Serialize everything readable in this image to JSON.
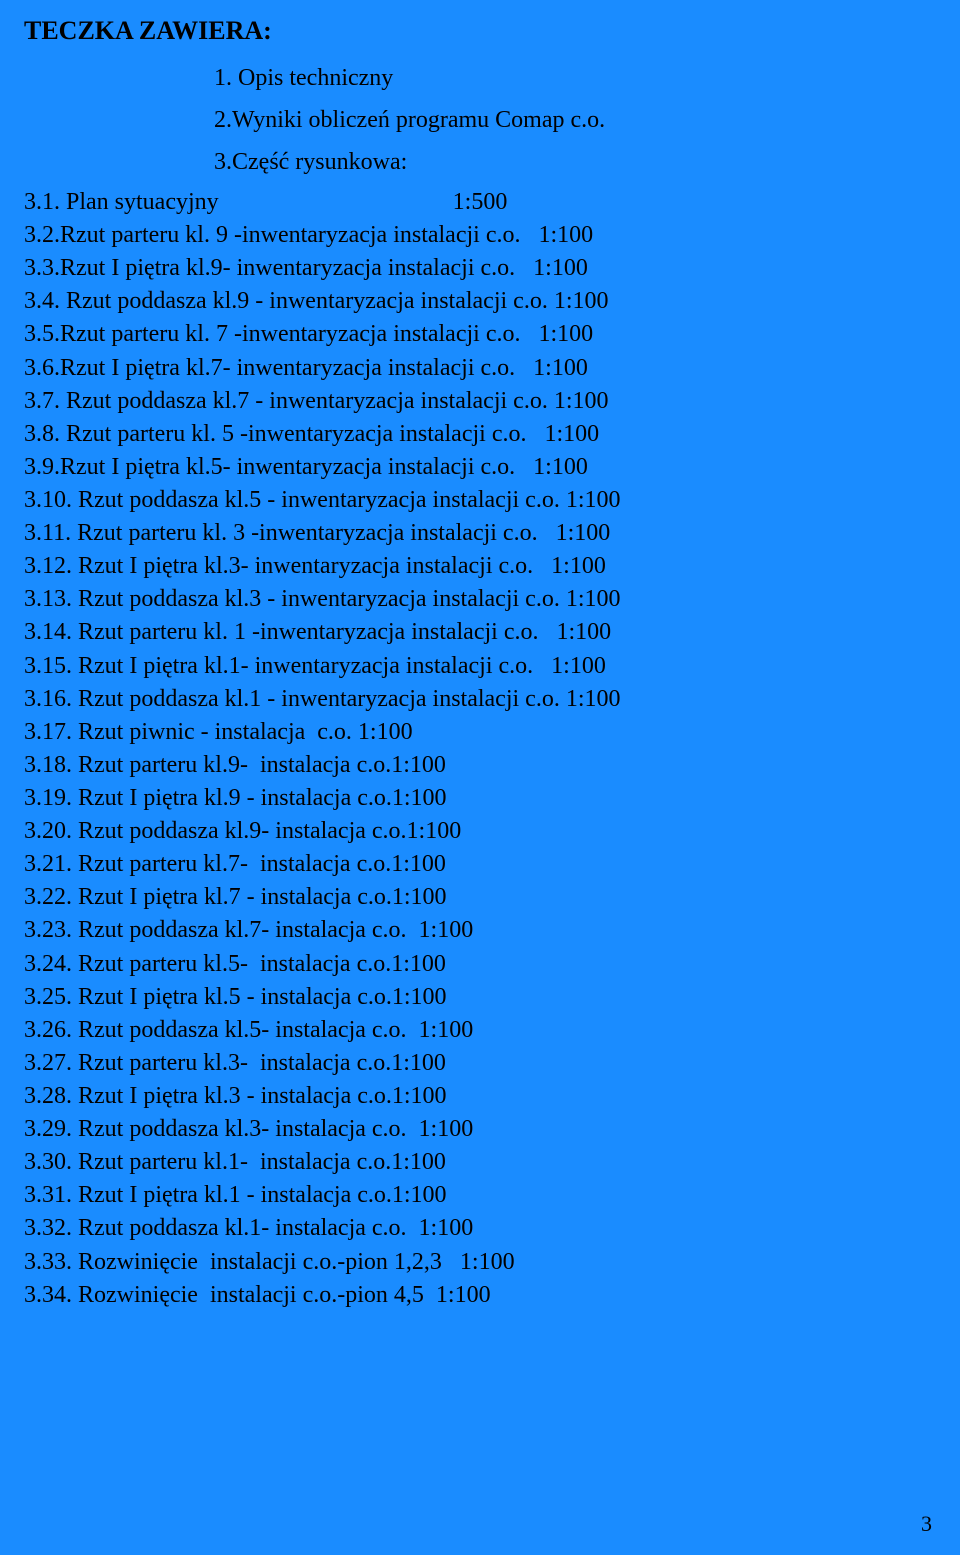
{
  "heading": "TECZKA ZAWIERA:",
  "intro": [
    "1. Opis techniczny",
    "",
    "2.Wyniki obliczeń programu Comap c.o.",
    "",
    "3.Część rysunkowa:"
  ],
  "items": [
    "3.1. Plan sytuacyjny                                       1:500",
    "3.2.Rzut parteru kl. 9 -inwentaryzacja instalacji c.o.   1:100",
    "3.3.Rzut I piętra kl.9- inwentaryzacja instalacji c.o.   1:100",
    "3.4. Rzut poddasza kl.9 - inwentaryzacja instalacji c.o. 1:100",
    "3.5.Rzut parteru kl. 7 -inwentaryzacja instalacji c.o.   1:100",
    "3.6.Rzut I piętra kl.7- inwentaryzacja instalacji c.o.   1:100",
    "3.7. Rzut poddasza kl.7 - inwentaryzacja instalacji c.o. 1:100",
    "3.8. Rzut parteru kl. 5 -inwentaryzacja instalacji c.o.   1:100",
    "3.9.Rzut I piętra kl.5- inwentaryzacja instalacji c.o.   1:100",
    "3.10. Rzut poddasza kl.5 - inwentaryzacja instalacji c.o. 1:100",
    "3.11. Rzut parteru kl. 3 -inwentaryzacja instalacji c.o.   1:100",
    "3.12. Rzut I piętra kl.3- inwentaryzacja instalacji c.o.   1:100",
    "3.13. Rzut poddasza kl.3 - inwentaryzacja instalacji c.o. 1:100",
    "3.14. Rzut parteru kl. 1 -inwentaryzacja instalacji c.o.   1:100",
    "3.15. Rzut I piętra kl.1- inwentaryzacja instalacji c.o.   1:100",
    "3.16. Rzut poddasza kl.1 - inwentaryzacja instalacji c.o. 1:100",
    "3.17. Rzut piwnic - instalacja  c.o. 1:100",
    "3.18. Rzut parteru kl.9-  instalacja c.o.1:100",
    "3.19. Rzut I piętra kl.9 - instalacja c.o.1:100",
    "3.20. Rzut poddasza kl.9- instalacja c.o.1:100",
    "3.21. Rzut parteru kl.7-  instalacja c.o.1:100",
    "3.22. Rzut I piętra kl.7 - instalacja c.o.1:100",
    "3.23. Rzut poddasza kl.7- instalacja c.o.  1:100",
    "3.24. Rzut parteru kl.5-  instalacja c.o.1:100",
    "3.25. Rzut I piętra kl.5 - instalacja c.o.1:100",
    "3.26. Rzut poddasza kl.5- instalacja c.o.  1:100",
    "3.27. Rzut parteru kl.3-  instalacja c.o.1:100",
    "3.28. Rzut I piętra kl.3 - instalacja c.o.1:100",
    "3.29. Rzut poddasza kl.3- instalacja c.o.  1:100",
    "3.30. Rzut parteru kl.1-  instalacja c.o.1:100",
    "3.31. Rzut I piętra kl.1 - instalacja c.o.1:100",
    "3.32. Rzut poddasza kl.1- instalacja c.o.  1:100",
    "3.33. Rozwinięcie  instalacji c.o.-pion 1,2,3   1:100",
    "3.34. Rozwinięcie  instalacji c.o.-pion 4,5  1:100"
  ],
  "page_number": "3",
  "colors": {
    "background": "#1a8cff",
    "text": "#000000"
  },
  "typography": {
    "heading_fontsize_pt": 20,
    "body_fontsize_pt": 18,
    "font_family": "Times New Roman"
  }
}
